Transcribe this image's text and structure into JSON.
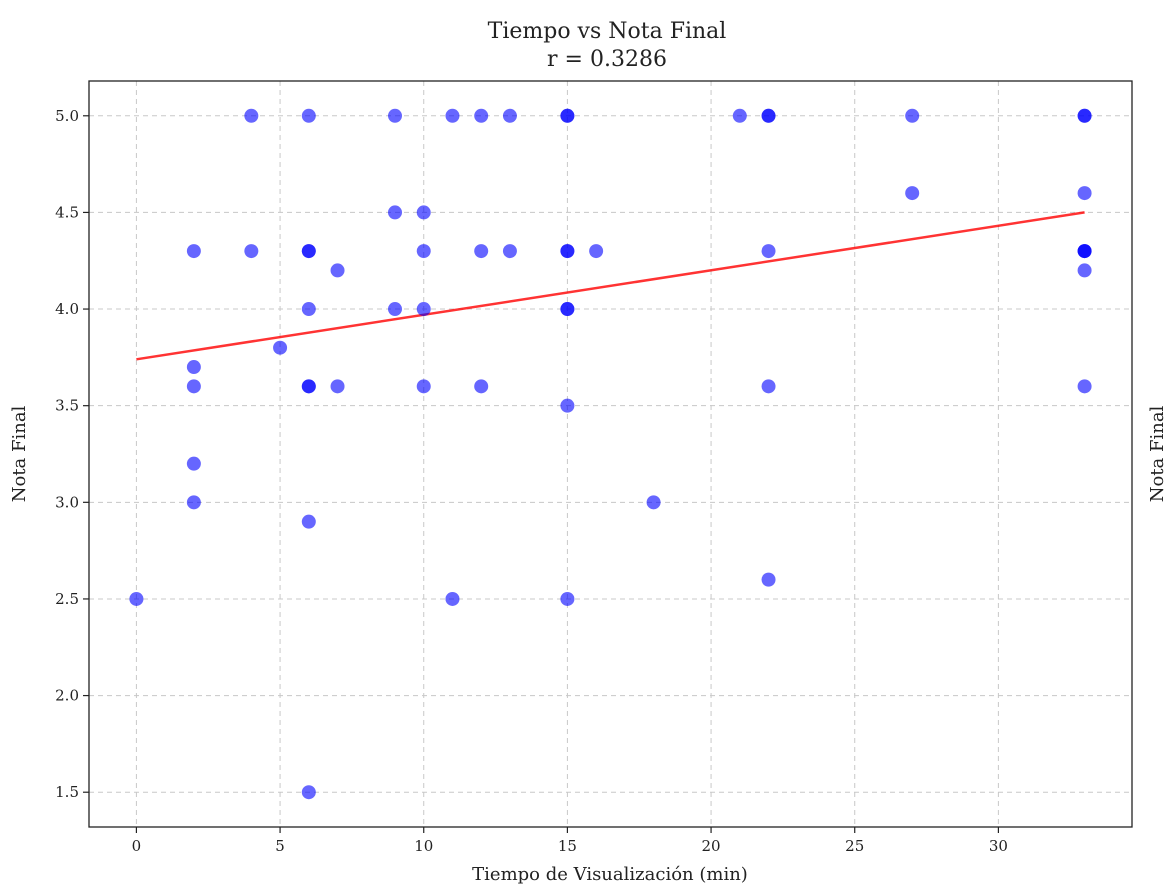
{
  "chart_data": {
    "type": "scatter",
    "title": "Tiempo vs Nota Final",
    "subtitle": "r = 0.3286",
    "xlabel": "Tiempo de Visualización (min)",
    "ylabel": "Nota Final",
    "ylabel_secondary": "Nota Final",
    "xlim": [
      -1.65,
      34.65
    ],
    "ylim": [
      1.32,
      5.18
    ],
    "x_ticks": [
      0,
      5,
      10,
      15,
      20,
      25,
      30
    ],
    "y_ticks": [
      1.5,
      2.0,
      2.5,
      3.0,
      3.5,
      4.0,
      4.5,
      5.0
    ],
    "x_tick_labels": [
      "0",
      "5",
      "10",
      "15",
      "20",
      "25",
      "30"
    ],
    "y_tick_labels": [
      "1.5",
      "2.0",
      "2.5",
      "3.0",
      "3.5",
      "4.0",
      "4.5",
      "5.0"
    ],
    "grid": true,
    "point_color": "#0000ff",
    "trend_color": "#ff0000",
    "points": [
      {
        "x": 0,
        "y": 2.5
      },
      {
        "x": 2,
        "y": 4.3
      },
      {
        "x": 2,
        "y": 3.7
      },
      {
        "x": 2,
        "y": 3.6
      },
      {
        "x": 2,
        "y": 3.2
      },
      {
        "x": 2,
        "y": 3.0
      },
      {
        "x": 4,
        "y": 5.0
      },
      {
        "x": 4,
        "y": 4.3
      },
      {
        "x": 5,
        "y": 3.8
      },
      {
        "x": 6,
        "y": 5.0
      },
      {
        "x": 6,
        "y": 4.3
      },
      {
        "x": 6,
        "y": 4.3
      },
      {
        "x": 6,
        "y": 4.0
      },
      {
        "x": 6,
        "y": 3.6
      },
      {
        "x": 6,
        "y": 3.6
      },
      {
        "x": 6,
        "y": 2.9
      },
      {
        "x": 6,
        "y": 1.5
      },
      {
        "x": 7,
        "y": 4.2
      },
      {
        "x": 7,
        "y": 3.6
      },
      {
        "x": 9,
        "y": 5.0
      },
      {
        "x": 9,
        "y": 4.5
      },
      {
        "x": 9,
        "y": 4.0
      },
      {
        "x": 10,
        "y": 4.5
      },
      {
        "x": 10,
        "y": 4.3
      },
      {
        "x": 10,
        "y": 4.0
      },
      {
        "x": 10,
        "y": 3.6
      },
      {
        "x": 11,
        "y": 5.0
      },
      {
        "x": 11,
        "y": 2.5
      },
      {
        "x": 12,
        "y": 5.0
      },
      {
        "x": 12,
        "y": 4.3
      },
      {
        "x": 12,
        "y": 3.6
      },
      {
        "x": 13,
        "y": 5.0
      },
      {
        "x": 13,
        "y": 4.3
      },
      {
        "x": 15,
        "y": 5.0
      },
      {
        "x": 15,
        "y": 5.0
      },
      {
        "x": 15,
        "y": 4.3
      },
      {
        "x": 15,
        "y": 4.3
      },
      {
        "x": 15,
        "y": 4.0
      },
      {
        "x": 15,
        "y": 4.0
      },
      {
        "x": 15,
        "y": 3.5
      },
      {
        "x": 15,
        "y": 2.5
      },
      {
        "x": 16,
        "y": 4.3
      },
      {
        "x": 18,
        "y": 3.0
      },
      {
        "x": 21,
        "y": 5.0
      },
      {
        "x": 22,
        "y": 5.0
      },
      {
        "x": 22,
        "y": 5.0
      },
      {
        "x": 22,
        "y": 4.3
      },
      {
        "x": 22,
        "y": 3.6
      },
      {
        "x": 22,
        "y": 2.6
      },
      {
        "x": 27,
        "y": 5.0
      },
      {
        "x": 27,
        "y": 4.6
      },
      {
        "x": 33,
        "y": 5.0
      },
      {
        "x": 33,
        "y": 5.0
      },
      {
        "x": 33,
        "y": 4.6
      },
      {
        "x": 33,
        "y": 4.3
      },
      {
        "x": 33,
        "y": 4.3
      },
      {
        "x": 33,
        "y": 4.3
      },
      {
        "x": 33,
        "y": 4.2
      },
      {
        "x": 33,
        "y": 3.6
      }
    ],
    "trend_line": {
      "x": [
        0,
        33
      ],
      "y": [
        3.74,
        4.5
      ]
    }
  }
}
